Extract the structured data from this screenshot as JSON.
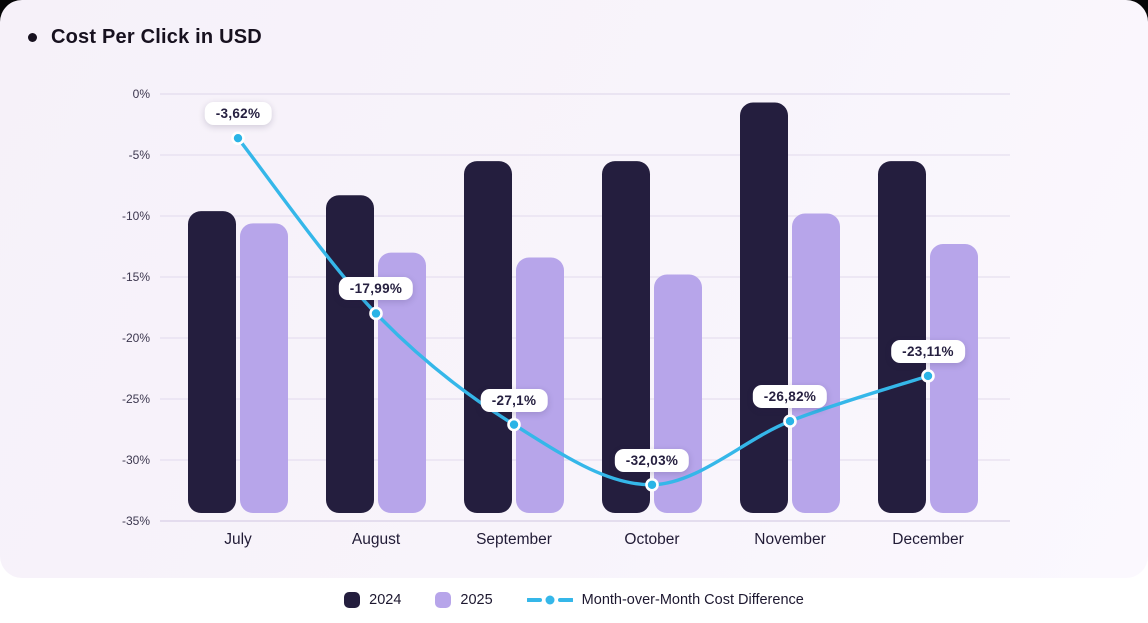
{
  "title": "Cost Per Click in USD",
  "colors": {
    "bar_2024": "#241e3e",
    "bar_2025": "#b7a5ea",
    "line": "#35b7e9",
    "dot_fill": "#29b4e6",
    "dot_ring": "#ffffff",
    "card_bg": "#f7f3fa",
    "grid": "#e6dff0",
    "axis_line": "#d8cfe6"
  },
  "chart_data": {
    "type": "bar",
    "title": "Cost Per Click in USD",
    "categories": [
      "July",
      "August",
      "September",
      "October",
      "November",
      "December"
    ],
    "series": [
      {
        "name": "2024",
        "type": "bar",
        "values": [
          -9.6,
          -8.3,
          -5.5,
          -5.5,
          -0.7,
          -5.5
        ]
      },
      {
        "name": "2025",
        "type": "bar",
        "values": [
          -10.6,
          -13.0,
          -13.4,
          -14.8,
          -9.8,
          -12.3
        ]
      },
      {
        "name": "Month-over-Month Cost Difference",
        "type": "line",
        "values": [
          -3.62,
          -17.99,
          -27.1,
          -32.03,
          -26.82,
          -23.11
        ],
        "point_labels": [
          "-3,62%",
          "-17,99%",
          "-27,1%",
          "-32,03%",
          "-26,82%",
          "-23,11%"
        ]
      }
    ],
    "y_ticks": [
      "0%",
      "-5%",
      "-10%",
      "-15%",
      "-20%",
      "-25%",
      "-30%",
      "-35%"
    ],
    "ylim": [
      -35,
      0
    ],
    "grid": "horizontal",
    "legend_position": "bottom"
  },
  "legend": {
    "items": [
      {
        "label": "2024"
      },
      {
        "label": "2025"
      },
      {
        "label": "Month-over-Month Cost Difference"
      }
    ]
  }
}
